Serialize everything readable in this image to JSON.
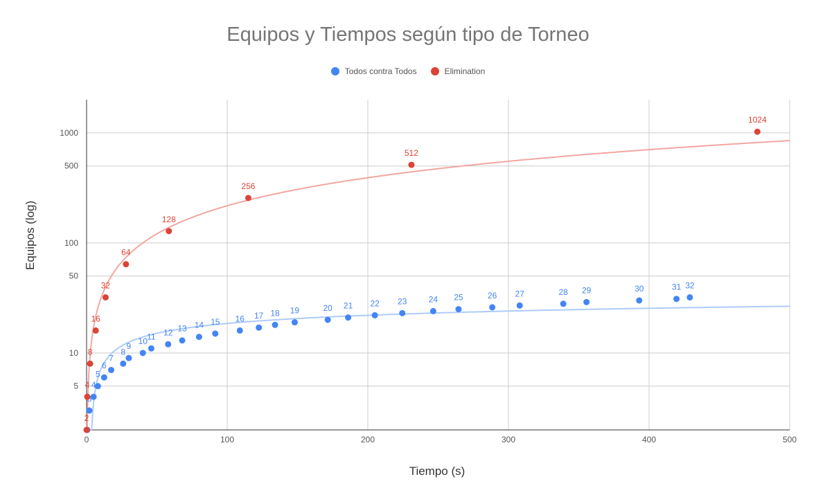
{
  "chart_data": {
    "type": "scatter",
    "title": "Equipos y Tiempos según tipo de Torneo",
    "xlabel": "Tiempo (s)",
    "ylabel": "Equipos (log)",
    "xlim": [
      0,
      500
    ],
    "ylim": [
      2,
      2000
    ],
    "yscale": "log",
    "x_ticks": [
      "0",
      "100",
      "200",
      "300",
      "400",
      "500"
    ],
    "y_ticks": [
      "5",
      "10",
      "50",
      "100",
      "500",
      "1000"
    ],
    "grid": true,
    "legend": "top",
    "series": [
      {
        "name": "Todos contra Todos",
        "color": "#4285f4",
        "trendline": "log",
        "points": [
          {
            "x": 0.5,
            "y": 2,
            "label": ""
          },
          {
            "x": 2,
            "y": 3,
            "label": "3"
          },
          {
            "x": 5,
            "y": 4,
            "label": "4"
          },
          {
            "x": 8,
            "y": 5,
            "label": "5"
          },
          {
            "x": 12.5,
            "y": 6,
            "label": "6"
          },
          {
            "x": 17.5,
            "y": 7,
            "label": "7"
          },
          {
            "x": 26,
            "y": 8,
            "label": "8"
          },
          {
            "x": 30,
            "y": 9,
            "label": "9"
          },
          {
            "x": 40,
            "y": 10,
            "label": "10"
          },
          {
            "x": 46,
            "y": 11,
            "label": "11"
          },
          {
            "x": 58,
            "y": 12,
            "label": "12"
          },
          {
            "x": 68,
            "y": 13,
            "label": "13"
          },
          {
            "x": 80,
            "y": 14,
            "label": "14"
          },
          {
            "x": 91.5,
            "y": 15,
            "label": "15"
          },
          {
            "x": 109,
            "y": 16,
            "label": "16"
          },
          {
            "x": 122.5,
            "y": 17,
            "label": "17"
          },
          {
            "x": 134,
            "y": 18,
            "label": "18"
          },
          {
            "x": 148,
            "y": 19,
            "label": "19"
          },
          {
            "x": 171.5,
            "y": 20,
            "label": "20"
          },
          {
            "x": 186,
            "y": 21,
            "label": "21"
          },
          {
            "x": 205,
            "y": 22,
            "label": "22"
          },
          {
            "x": 224.5,
            "y": 23,
            "label": "23"
          },
          {
            "x": 246.5,
            "y": 24,
            "label": "24"
          },
          {
            "x": 264.5,
            "y": 25,
            "label": "25"
          },
          {
            "x": 288.5,
            "y": 26,
            "label": "26"
          },
          {
            "x": 308,
            "y": 27,
            "label": "27"
          },
          {
            "x": 339,
            "y": 28,
            "label": "28"
          },
          {
            "x": 355.5,
            "y": 29,
            "label": "29"
          },
          {
            "x": 393,
            "y": 30,
            "label": "30"
          },
          {
            "x": 419.5,
            "y": 31,
            "label": "31"
          },
          {
            "x": 429,
            "y": 32,
            "label": "32"
          }
        ]
      },
      {
        "name": "Elimination",
        "color": "#db4437",
        "trendline": "power",
        "points": [
          {
            "x": 0,
            "y": 2,
            "label": "2"
          },
          {
            "x": 0.5,
            "y": 4,
            "label": "4"
          },
          {
            "x": 2.5,
            "y": 8,
            "label": "8"
          },
          {
            "x": 6.5,
            "y": 16,
            "label": "16"
          },
          {
            "x": 13.5,
            "y": 32,
            "label": "32"
          },
          {
            "x": 28,
            "y": 64,
            "label": "64"
          },
          {
            "x": 58.5,
            "y": 128,
            "label": "128"
          },
          {
            "x": 115,
            "y": 256,
            "label": "256"
          },
          {
            "x": 231,
            "y": 512,
            "label": "512"
          },
          {
            "x": 477,
            "y": 1024,
            "label": "1024"
          }
        ]
      }
    ]
  }
}
